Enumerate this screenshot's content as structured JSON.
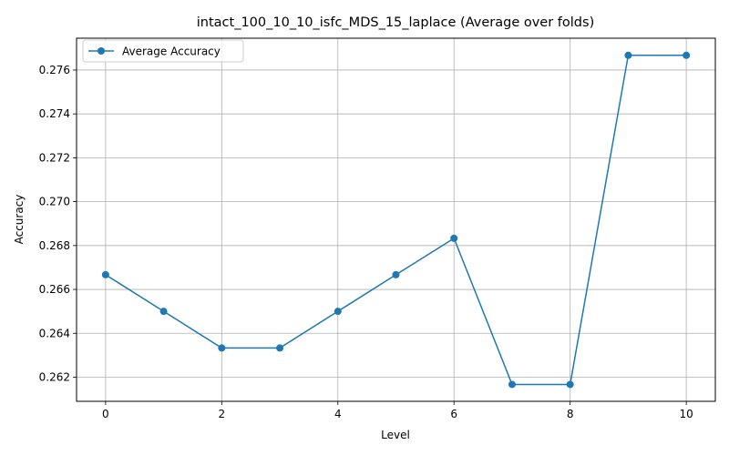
{
  "chart_data": {
    "type": "line",
    "title": "intact_100_10_10_isfc_MDS_15_laplace (Average over folds)",
    "xlabel": "Level",
    "ylabel": "Accuracy",
    "x": [
      0,
      1,
      2,
      3,
      4,
      5,
      6,
      7,
      8,
      9,
      10
    ],
    "series": [
      {
        "name": "Average Accuracy",
        "values": [
          0.26667,
          0.265,
          0.26333,
          0.26333,
          0.265,
          0.26667,
          0.26833,
          0.26167,
          0.26167,
          0.27667,
          0.27667
        ],
        "color": "#1f77b4",
        "marker": "circle"
      }
    ],
    "xlim": [
      -0.5,
      10.5
    ],
    "ylim": [
      0.2609,
      0.27745
    ],
    "xticks": [
      0,
      2,
      4,
      6,
      8,
      10
    ],
    "xtick_labels": [
      "0",
      "2",
      "4",
      "6",
      "8",
      "10"
    ],
    "yticks": [
      0.262,
      0.264,
      0.266,
      0.268,
      0.27,
      0.272,
      0.274,
      0.276
    ],
    "ytick_labels": [
      "0.262",
      "0.264",
      "0.266",
      "0.268",
      "0.270",
      "0.272",
      "0.274",
      "0.276"
    ],
    "grid": true,
    "legend_position": "upper-left"
  }
}
